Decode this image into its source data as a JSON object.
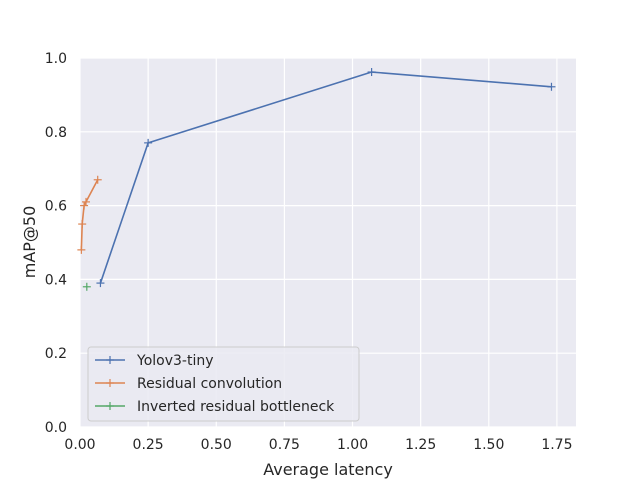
{
  "chart_data": {
    "type": "line",
    "title": "",
    "xlabel": "Average latency",
    "ylabel": "mAP@50",
    "xlim": [
      0.0,
      1.82
    ],
    "ylim": [
      0.0,
      1.0
    ],
    "xticks": [
      "0.00",
      "0.25",
      "0.50",
      "0.75",
      "1.00",
      "1.25",
      "1.50",
      "1.75"
    ],
    "yticks": [
      "0.0",
      "0.2",
      "0.4",
      "0.6",
      "0.8",
      "1.0"
    ],
    "grid": true,
    "legend_position": "lower-left",
    "series": [
      {
        "name": "Yolov3-tiny",
        "color": "#4c72b0",
        "x": [
          0.075,
          0.25,
          1.07,
          1.73
        ],
        "y": [
          0.39,
          0.77,
          0.962,
          0.922
        ]
      },
      {
        "name": "Residual convolution",
        "color": "#dd8452",
        "x": [
          0.005,
          0.008,
          0.015,
          0.022,
          0.065
        ],
        "y": [
          0.48,
          0.55,
          0.6,
          0.61,
          0.67
        ]
      },
      {
        "name": "Inverted residual bottleneck",
        "color": "#55a868",
        "x": [
          0.025
        ],
        "y": [
          0.38
        ]
      }
    ]
  }
}
